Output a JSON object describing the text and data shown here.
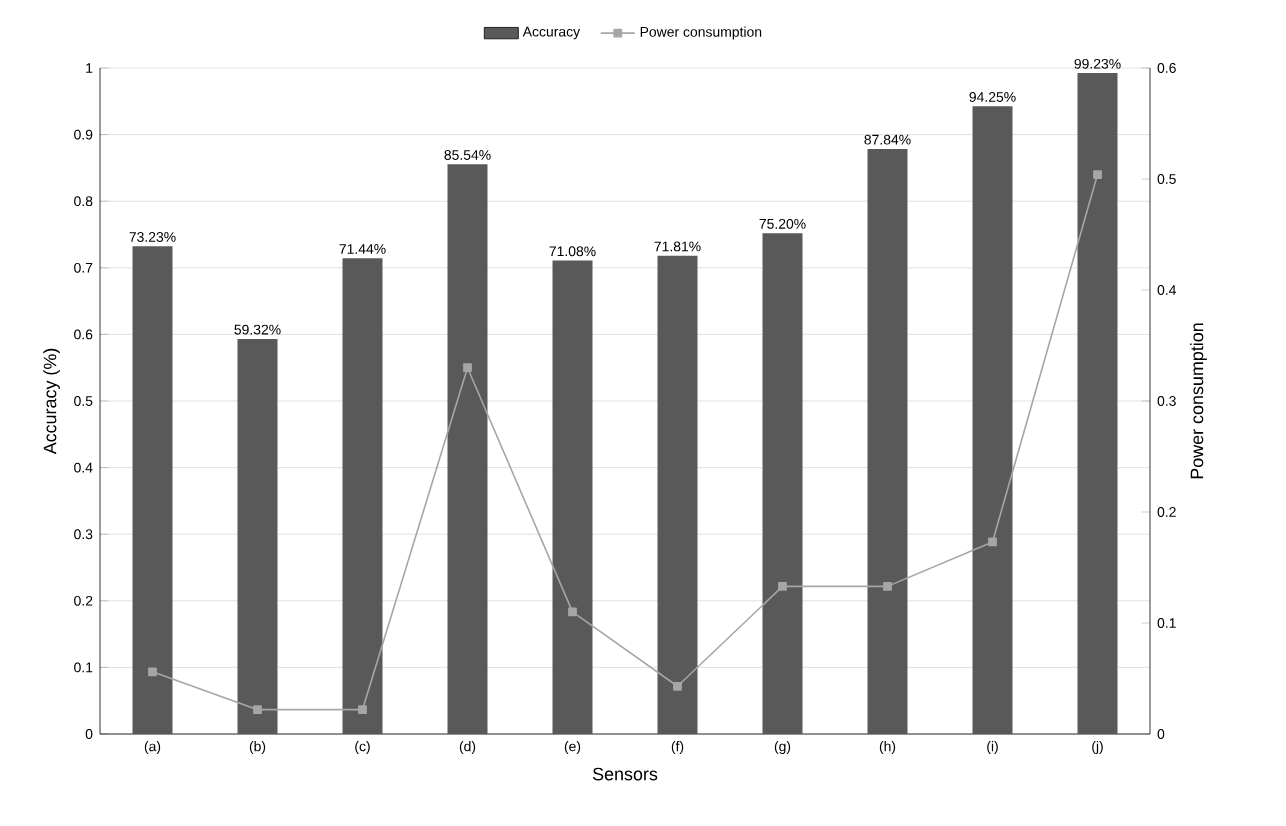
{
  "chart_data": {
    "type": "bar",
    "xlabel": "Sensors",
    "ylabel": "Accuracy (%)",
    "y2label": "Power consumption",
    "categories": [
      "(a)",
      "(b)",
      "(c)",
      "(d)",
      "(e)",
      "(f)",
      "(g)",
      "(h)",
      "(i)",
      "(j)"
    ],
    "series": [
      {
        "name": "Accuracy",
        "color": "#595959",
        "values": [
          0.7323,
          0.5932,
          0.7144,
          0.8554,
          0.7108,
          0.7181,
          0.752,
          0.8784,
          0.9425,
          0.9923
        ],
        "value_labels": [
          "73.23%",
          "59.32%",
          "71.44%",
          "85.54%",
          "71.08%",
          "71.81%",
          "75.20%",
          "87.84%",
          "94.25%",
          "99.23%"
        ]
      },
      {
        "name": "Power consumption",
        "type": "line",
        "axis": "y2",
        "color": "#a6a6a6",
        "marker": "square",
        "values": [
          0.056,
          0.022,
          0.022,
          0.33,
          0.11,
          0.043,
          0.133,
          0.133,
          0.173,
          0.504
        ]
      }
    ],
    "ylim": [
      0,
      1
    ],
    "yticks": [
      0,
      0.1,
      0.2,
      0.3,
      0.4,
      0.5,
      0.6,
      0.7,
      0.8,
      0.9,
      1
    ],
    "y2lim": [
      0,
      0.6
    ],
    "y2ticks": [
      0,
      0.1,
      0.2,
      0.3,
      0.4,
      0.5,
      0.6
    ],
    "grid": "y",
    "legend": "top"
  }
}
